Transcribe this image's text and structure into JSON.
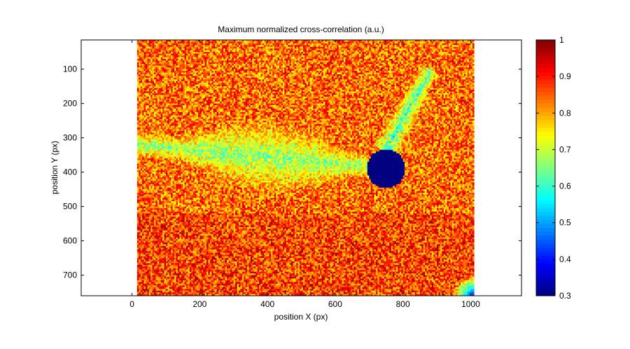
{
  "chart_data": {
    "type": "heatmap",
    "title": "Maximum normalized cross-correlation (a.u.)",
    "xlabel": "position X (px)",
    "ylabel": "position Y (px)",
    "xlim": [
      -150,
      1150
    ],
    "ylim": [
      760,
      15
    ],
    "data_extent": {
      "x": [
        15,
        1010
      ],
      "y": [
        15,
        760
      ]
    },
    "x_ticks": [
      0,
      200,
      400,
      600,
      800,
      1000
    ],
    "y_ticks": [
      100,
      200,
      300,
      400,
      500,
      600,
      700
    ],
    "x_tick_labels": [
      "0",
      "200",
      "400",
      "600",
      "800",
      "1000"
    ],
    "y_tick_labels": [
      "100",
      "200",
      "300",
      "400",
      "500",
      "600",
      "700"
    ],
    "colorbar": {
      "colormap": "jet",
      "range": [
        0.3,
        1
      ],
      "ticks": [
        0.3,
        0.4,
        0.5,
        0.6,
        0.7,
        0.8,
        0.9,
        1
      ],
      "tick_labels": [
        "0.3",
        "0.4",
        "0.5",
        "0.6",
        "0.7",
        "0.8",
        "0.9",
        "1"
      ]
    },
    "features": {
      "background_level": 0.84,
      "disk": {
        "center_x": 750,
        "center_y": 390,
        "radius": 57,
        "value": 0.3
      },
      "band": {
        "x_range": [
          15,
          760
        ],
        "y_center_at_left": 320,
        "y_center_at_right": 390,
        "level": 0.64
      },
      "diagonal_streak": {
        "from": [
          760,
          320
        ],
        "to": [
          870,
          120
        ],
        "level": 0.58
      },
      "corner_low": {
        "x": 1005,
        "y": 760,
        "level": 0.4
      }
    },
    "grid": false
  }
}
